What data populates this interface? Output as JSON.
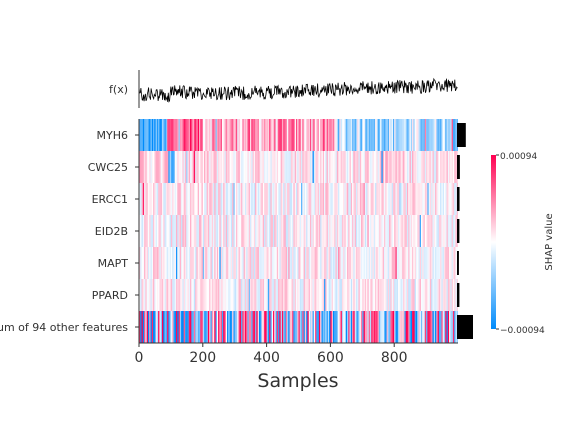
{
  "chart_data": {
    "type": "heatmap",
    "title": "",
    "xlabel": "Samples",
    "ylabel": "",
    "fx_label": "f(x)",
    "n_samples": 1000,
    "x_range": [
      0,
      1000
    ],
    "x_ticks": [
      "0",
      "200",
      "400",
      "600",
      "800"
    ],
    "features": [
      "MYH6",
      "CWC25",
      "ERCC1",
      "EID2B",
      "MAPT",
      "PPARD",
      "Sum of 94 other features"
    ],
    "feature_importance_bars": [
      0.55,
      0.18,
      0.16,
      0.15,
      0.12,
      0.15,
      1.0
    ],
    "colorbar": {
      "label": "SHAP value",
      "max_label": "0.00094",
      "min_label": "−0.00094",
      "max": 0.00094,
      "min": -0.00094
    },
    "colors": {
      "positive": "#ff0051",
      "negative": "#008bfb",
      "neutral": "#ffffff",
      "line": "#000000",
      "text": "#333333"
    },
    "rows_summary": [
      {
        "feature": "MYH6",
        "segments": [
          [
            0,
            85,
            -0.8
          ],
          [
            85,
            200,
            0.6
          ],
          [
            200,
            620,
            0.35
          ],
          [
            620,
            1000,
            -0.3
          ]
        ]
      },
      {
        "feature": "CWC25",
        "segments": [
          [
            0,
            90,
            0.15
          ],
          [
            90,
            110,
            -0.6
          ],
          [
            110,
            1000,
            0.1
          ]
        ]
      },
      {
        "feature": "ERCC1",
        "segments": [
          [
            0,
            1000,
            0.05
          ]
        ]
      },
      {
        "feature": "EID2B",
        "segments": [
          [
            0,
            1000,
            0.05
          ]
        ]
      },
      {
        "feature": "MAPT",
        "segments": [
          [
            0,
            1000,
            0.05
          ]
        ]
      },
      {
        "feature": "PPARD",
        "segments": [
          [
            0,
            1000,
            0.03
          ]
        ]
      },
      {
        "feature": "Sum of 94 other features",
        "segments": [
          [
            0,
            1000,
            0.0
          ]
        ]
      }
    ]
  }
}
